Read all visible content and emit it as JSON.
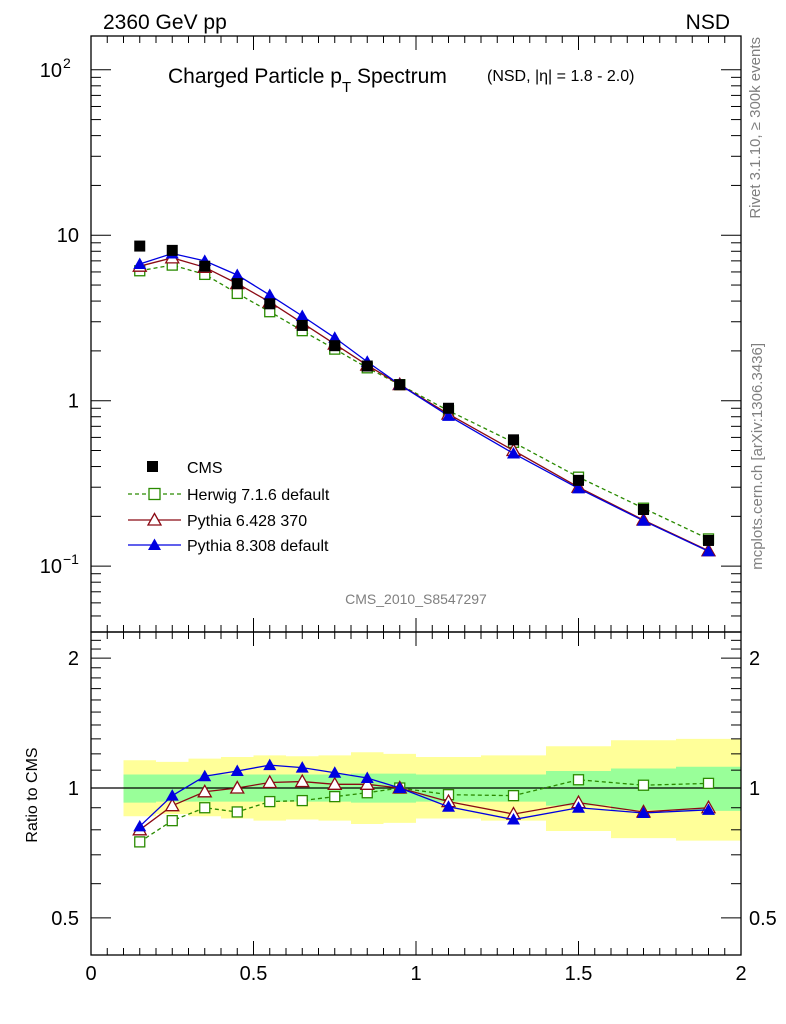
{
  "header": {
    "left": "2360 GeV pp",
    "right": "NSD"
  },
  "side": {
    "rivet": "Rivet 3.1.10, ≥ 300k events",
    "mcplots": "mcplots.cern.ch [arXiv:1306.3436]"
  },
  "main": {
    "title_a": "Charged Particle p",
    "title_sub": "T",
    "title_b": " Spectrum",
    "title_note": "(NSD, |η| = 1.8 - 2.0)",
    "watermark": "CMS_2010_S8547297",
    "yticks": [
      {
        "v": 100,
        "m": "10",
        "e": "2"
      },
      {
        "v": 10,
        "m": "10",
        "e": ""
      },
      {
        "v": 1,
        "m": "1",
        "e": ""
      },
      {
        "v": 0.1,
        "m": "10",
        "e": "−1"
      }
    ]
  },
  "ratio": {
    "ylabel": "Ratio to CMS",
    "yticks": [
      "2",
      "1",
      "0.5"
    ],
    "xticks": [
      "0",
      "0.5",
      "1",
      "1.5",
      "2"
    ]
  },
  "colors": {
    "cms": "#000000",
    "herwig": "#2a8a00",
    "pythia6": "#8b0a14",
    "pythia8": "#0000e0",
    "band_outer": "#ffff99",
    "band_inner": "#99ff99"
  },
  "chart_data": {
    "type": "scatter",
    "x_range": [
      0,
      2
    ],
    "y_range_main": [
      0.04,
      160
    ],
    "y_scale_main": "log",
    "y_range_ratio": [
      0.41,
      2.3
    ],
    "y_scale_ratio": "log",
    "legend_position": "lower-left",
    "x": [
      0.15,
      0.25,
      0.35,
      0.45,
      0.55,
      0.65,
      0.75,
      0.85,
      0.95,
      1.1,
      1.3,
      1.5,
      1.7,
      1.9
    ],
    "series": [
      {
        "name": "CMS",
        "key": "cms",
        "marker": "square-filled",
        "line": "none",
        "values": [
          8.6,
          8.1,
          6.5,
          5.1,
          3.85,
          2.85,
          2.15,
          1.62,
          1.25,
          0.9,
          0.58,
          0.33,
          0.22,
          0.143
        ]
      },
      {
        "name": "Herwig 7.1.6 default",
        "key": "herwig",
        "marker": "square-open",
        "line": "dashed",
        "values": [
          6.1,
          6.6,
          5.8,
          4.45,
          3.45,
          2.65,
          2.05,
          1.58,
          1.25,
          0.87,
          0.56,
          0.345,
          0.224,
          0.146
        ]
      },
      {
        "name": "Pythia 6.428 370",
        "key": "pythia6",
        "marker": "triangle-open",
        "line": "solid",
        "values": [
          6.5,
          7.3,
          6.4,
          5.1,
          3.95,
          2.95,
          2.2,
          1.64,
          1.25,
          0.83,
          0.5,
          0.3,
          0.19,
          0.124
        ]
      },
      {
        "name": "Pythia 8.308 default",
        "key": "pythia8",
        "marker": "triangle-filled",
        "line": "solid",
        "values": [
          6.7,
          7.75,
          7.0,
          5.75,
          4.35,
          3.25,
          2.4,
          1.72,
          1.25,
          0.81,
          0.48,
          0.295,
          0.188,
          0.123
        ]
      }
    ],
    "ratio_series": [
      {
        "key": "herwig",
        "marker": "square-open",
        "line": "dashed",
        "values": [
          0.75,
          0.84,
          0.9,
          0.88,
          0.93,
          0.935,
          0.955,
          0.975,
          1.0,
          0.965,
          0.96,
          1.045,
          1.015,
          1.025
        ]
      },
      {
        "key": "pythia6",
        "marker": "triangle-open",
        "line": "solid",
        "values": [
          0.8,
          0.91,
          0.98,
          1.0,
          1.03,
          1.035,
          1.02,
          1.02,
          1.0,
          0.93,
          0.87,
          0.925,
          0.88,
          0.9
        ]
      },
      {
        "key": "pythia8",
        "marker": "triangle-filled",
        "line": "solid",
        "values": [
          0.815,
          0.96,
          1.065,
          1.095,
          1.13,
          1.115,
          1.085,
          1.055,
          1.0,
          0.905,
          0.845,
          0.9,
          0.875,
          0.89
        ]
      }
    ],
    "ratio_band": {
      "edges": [
        0.1,
        0.2,
        0.3,
        0.4,
        0.5,
        0.6,
        0.7,
        0.8,
        0.9,
        1.0,
        1.2,
        1.4,
        1.6,
        1.8,
        2.0
      ],
      "inner_lo": [
        0.925,
        0.93,
        0.93,
        0.93,
        0.93,
        0.93,
        0.93,
        0.925,
        0.925,
        0.93,
        0.93,
        0.91,
        0.89,
        0.885
      ],
      "inner_hi": [
        1.075,
        1.075,
        1.075,
        1.075,
        1.075,
        1.075,
        1.075,
        1.08,
        1.08,
        1.075,
        1.075,
        1.095,
        1.11,
        1.12
      ],
      "outer_lo": [
        0.86,
        0.87,
        0.86,
        0.85,
        0.84,
        0.845,
        0.84,
        0.825,
        0.83,
        0.85,
        0.84,
        0.795,
        0.765,
        0.755
      ],
      "outer_hi": [
        1.16,
        1.15,
        1.17,
        1.18,
        1.19,
        1.185,
        1.19,
        1.21,
        1.2,
        1.18,
        1.19,
        1.25,
        1.29,
        1.3
      ]
    }
  }
}
